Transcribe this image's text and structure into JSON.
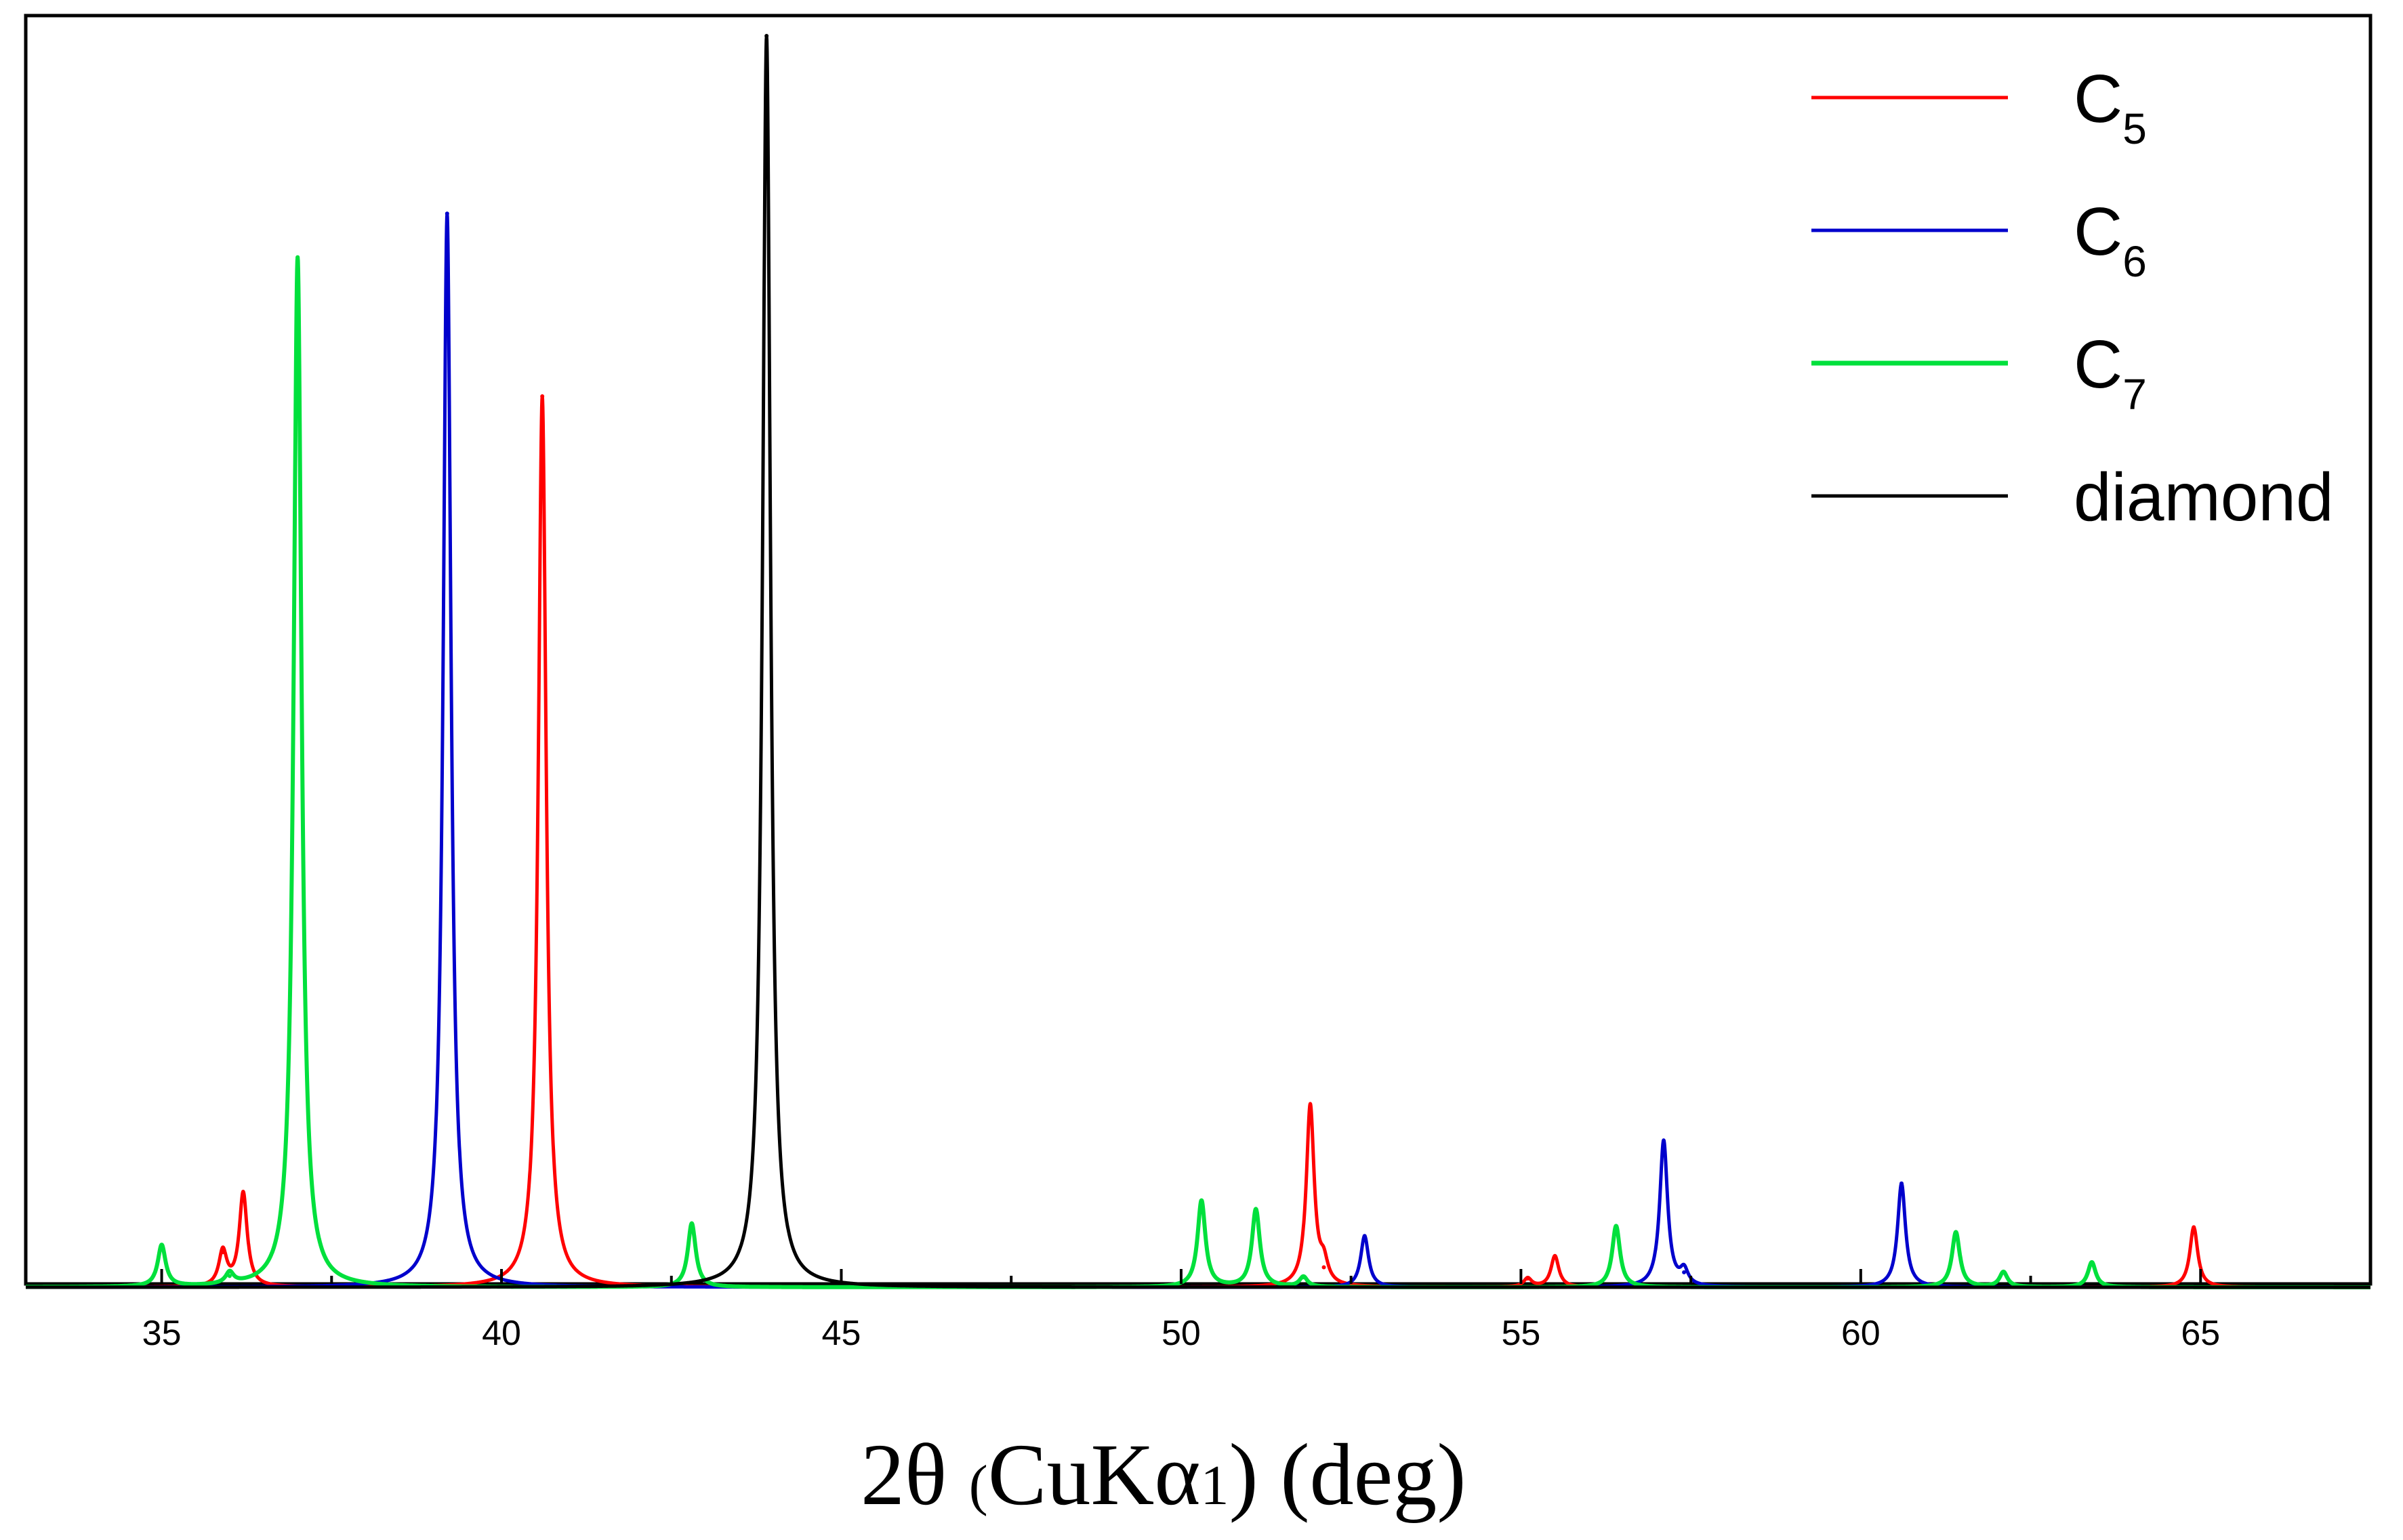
{
  "chart_data": {
    "type": "line",
    "title": "",
    "xlabel": "2θ (CuKα1) (deg)",
    "xlabel_parts": {
      "main": "2θ ",
      "paren_open": "(",
      "cu": "CuK",
      "alpha": "α",
      "one": "1",
      "paren_close": ")",
      "unit": " (deg)"
    },
    "ylabel": "",
    "xlim": [
      33.0,
      67.5
    ],
    "ylim": [
      0,
      100
    ],
    "xticks": [
      35,
      40,
      45,
      50,
      55,
      60,
      65
    ],
    "xtick_labels": [
      "35",
      "40",
      "45",
      "50",
      "55",
      "60",
      "65"
    ],
    "grid": false,
    "legend_position": "top-right",
    "series": [
      {
        "name": "C5",
        "label_main": "C",
        "label_sub": "5",
        "color": "#ff0000",
        "peaks": [
          {
            "x": 35.9,
            "y": 2.8
          },
          {
            "x": 36.2,
            "y": 7.5
          },
          {
            "x": 40.6,
            "y": 71.2
          },
          {
            "x": 51.9,
            "y": 14.5
          },
          {
            "x": 52.1,
            "y": 1.6
          },
          {
            "x": 55.1,
            "y": 0.7
          },
          {
            "x": 55.5,
            "y": 2.5
          },
          {
            "x": 64.9,
            "y": 4.8
          }
        ]
      },
      {
        "name": "C6",
        "label_main": "C",
        "label_sub": "6",
        "color": "#0000cc",
        "peaks": [
          {
            "x": 39.2,
            "y": 85.8
          },
          {
            "x": 52.7,
            "y": 4.1
          },
          {
            "x": 57.1,
            "y": 11.7
          },
          {
            "x": 57.4,
            "y": 1.2
          },
          {
            "x": 60.6,
            "y": 8.3
          }
        ]
      },
      {
        "name": "C7",
        "label_main": "C",
        "label_sub": "7",
        "color": "#00e03c",
        "peaks": [
          {
            "x": 35.0,
            "y": 3.3
          },
          {
            "x": 36.0,
            "y": 0.9
          },
          {
            "x": 37.0,
            "y": 82.3
          },
          {
            "x": 42.8,
            "y": 5.1
          },
          {
            "x": 50.3,
            "y": 6.9
          },
          {
            "x": 51.1,
            "y": 6.2
          },
          {
            "x": 51.8,
            "y": 0.8
          },
          {
            "x": 56.4,
            "y": 4.9
          },
          {
            "x": 61.4,
            "y": 4.4
          },
          {
            "x": 62.1,
            "y": 1.2
          },
          {
            "x": 63.4,
            "y": 2.0
          }
        ]
      },
      {
        "name": "diamond",
        "label_main": "diamond",
        "label_sub": "",
        "color": "#000000",
        "peaks": [
          {
            "x": 43.9,
            "y": 100
          }
        ]
      }
    ]
  }
}
